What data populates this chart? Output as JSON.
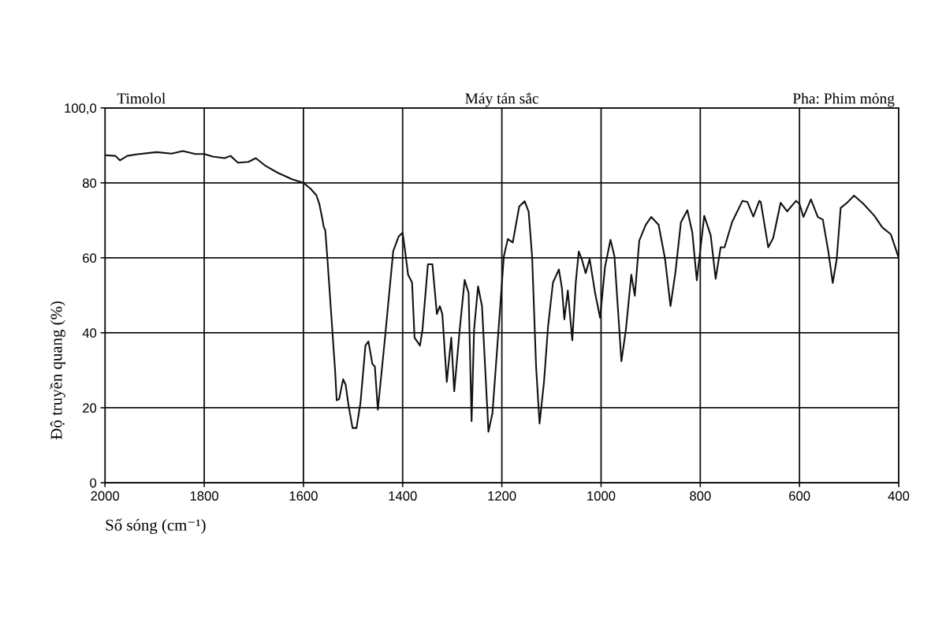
{
  "chart_data": {
    "type": "line",
    "title": "Timolol",
    "subtitle": "Máy tán sắc",
    "annotations": [
      "Pha: Phim mỏng"
    ],
    "xlabel": "Số sóng (cm⁻¹)",
    "ylabel": "Độ truyền quang (%)",
    "xlim": [
      2000,
      400
    ],
    "xticks": [
      2000,
      1800,
      1600,
      1400,
      1200,
      1000,
      800,
      600,
      400
    ],
    "ylim": [
      0,
      100
    ],
    "yticks": [
      0,
      20,
      40,
      60,
      80,
      {
        "value": 100,
        "label": "100,0"
      }
    ],
    "grid": true,
    "line_style": "solid",
    "series": [
      {
        "color": "#111111",
        "x": [
          2000,
          1979,
          1970,
          1955,
          1937,
          1896,
          1866,
          1843,
          1818,
          1800,
          1783,
          1759,
          1747,
          1732,
          1711,
          1696,
          1676,
          1652,
          1622,
          1600,
          1586,
          1574,
          1568,
          1562,
          1559,
          1556,
          1552,
          1544,
          1536,
          1533,
          1528,
          1520,
          1515,
          1509,
          1501,
          1493,
          1485,
          1475,
          1469,
          1461,
          1456,
          1450,
          1435,
          1419,
          1408,
          1400,
          1395,
          1389,
          1381,
          1376,
          1365,
          1360,
          1349,
          1340,
          1331,
          1325,
          1320,
          1311,
          1302,
          1296,
          1285,
          1275,
          1267,
          1261,
          1256,
          1248,
          1240,
          1227,
          1219,
          1209,
          1196,
          1188,
          1178,
          1165,
          1154,
          1146,
          1139,
          1131,
          1124,
          1115,
          1107,
          1097,
          1085,
          1079,
          1074,
          1067,
          1058,
          1051,
          1045,
          1039,
          1031,
          1023,
          1012,
          1002,
          992,
          981,
          973,
          959,
          950,
          939,
          932,
          923,
          910,
          899,
          884,
          871,
          860,
          850,
          839,
          826,
          816,
          807,
          792,
          779,
          769,
          759,
          751,
          736,
          715,
          705,
          693,
          681,
          678,
          663,
          653,
          638,
          625,
          607,
          600,
          592,
          577,
          563,
          553,
          542,
          533,
          525,
          517,
          504,
          490,
          471,
          449,
          433,
          416,
          400
        ],
        "values": [
          87.4,
          87.2,
          86.0,
          87.2,
          87.6,
          88.2,
          87.8,
          88.5,
          87.7,
          87.7,
          87.0,
          86.6,
          87.2,
          85.4,
          85.6,
          86.6,
          84.5,
          82.7,
          80.9,
          80.0,
          78.5,
          76.7,
          74.4,
          70.5,
          68.2,
          67.4,
          60.4,
          45.0,
          29.6,
          22.0,
          22.3,
          27.6,
          26.2,
          20.6,
          14.6,
          14.6,
          21.3,
          36.6,
          37.7,
          31.7,
          31.0,
          19.5,
          39.4,
          61.8,
          65.7,
          66.7,
          61.8,
          55.5,
          53.4,
          38.7,
          36.6,
          40.8,
          58.3,
          58.3,
          45.0,
          47.1,
          45.0,
          26.9,
          38.7,
          24.4,
          40.8,
          54.1,
          50.6,
          16.4,
          40.8,
          52.4,
          47.1,
          13.6,
          18.5,
          36.6,
          60.4,
          65.0,
          64.1,
          73.7,
          75.1,
          72.3,
          60.4,
          31.0,
          15.8,
          26.9,
          41.5,
          53.4,
          56.9,
          52.0,
          43.6,
          51.3,
          38.0,
          53.4,
          61.7,
          59.7,
          55.9,
          59.7,
          50.6,
          44.0,
          57.6,
          64.8,
          60.4,
          32.4,
          40.8,
          55.5,
          49.9,
          64.6,
          68.8,
          70.9,
          68.8,
          59.7,
          47.1,
          56.2,
          69.5,
          72.7,
          66.7,
          54.0,
          71.2,
          66.0,
          54.4,
          62.8,
          62.8,
          69.5,
          75.2,
          74.9,
          71.0,
          75.2,
          74.9,
          62.8,
          65.3,
          74.7,
          72.4,
          75.2,
          74.4,
          70.9,
          75.6,
          70.9,
          70.2,
          61.8,
          53.3,
          59.6,
          73.3,
          74.7,
          76.6,
          74.4,
          71.2,
          68.1,
          66.3,
          60.0
        ]
      }
    ]
  }
}
